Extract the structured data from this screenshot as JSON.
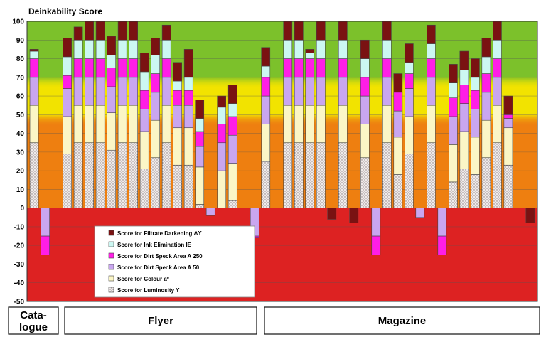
{
  "chart_data": {
    "type": "bar",
    "stacked": true,
    "ylabel": "Deinkability Score",
    "ylim": [
      -50,
      100
    ],
    "yticks": [
      -50,
      -40,
      -30,
      -20,
      -10,
      0,
      10,
      20,
      30,
      40,
      50,
      60,
      70,
      80,
      90,
      100
    ],
    "grid": true,
    "legend_position": "bottom-left",
    "background_bands": [
      {
        "from": -50,
        "to": 0,
        "color": "#dd2222"
      },
      {
        "from": 0,
        "to": 50,
        "color": "#ee7f10"
      },
      {
        "from": 50,
        "to": 70,
        "color": "#f2e300"
      },
      {
        "from": 70,
        "to": 100,
        "color": "#7cc12b"
      }
    ],
    "groups": [
      {
        "label_lines": [
          "Cata-",
          "logue"
        ],
        "start": 0,
        "end": 0
      },
      {
        "label_lines": [
          "Flyer"
        ],
        "start": 1,
        "end": 20
      },
      {
        "label_lines": [
          "Magazine"
        ],
        "start": 21,
        "end": 45
      }
    ],
    "series": [
      {
        "name": "Score for Luminosity Y",
        "color": "#e8e0e0",
        "values": [
          35,
          0,
          0,
          29,
          35,
          35,
          35,
          31,
          35,
          35,
          21,
          27,
          35,
          23,
          23,
          2,
          0,
          0,
          4,
          0,
          0,
          25,
          0,
          35,
          35,
          35,
          35,
          0,
          35,
          0,
          27,
          0,
          35,
          18,
          29,
          0,
          35,
          0,
          14,
          21,
          18,
          27,
          35,
          23,
          0,
          0
        ]
      },
      {
        "name": "Score for Colour a*",
        "color": "#fbf6c6",
        "values": [
          20,
          0,
          0,
          20,
          20,
          20,
          20,
          20,
          20,
          20,
          20,
          20,
          20,
          20,
          20,
          20,
          0,
          20,
          20,
          0,
          0,
          20,
          0,
          20,
          20,
          20,
          20,
          0,
          20,
          0,
          18,
          0,
          20,
          20,
          20,
          0,
          20,
          0,
          20,
          20,
          20,
          20,
          20,
          20,
          0,
          0
        ]
      },
      {
        "name": "Score for Dirt Speck Area A 50",
        "color": "#c9a6ef",
        "values": [
          15,
          -15,
          0,
          15,
          15,
          15,
          15,
          14,
          15,
          15,
          12,
          15,
          15,
          12,
          12,
          11,
          -4,
          15,
          15,
          0,
          -15,
          15,
          0,
          15,
          15,
          15,
          15,
          0,
          15,
          0,
          15,
          -15,
          15,
          14,
          15,
          -5,
          15,
          -15,
          15,
          15,
          15,
          15,
          15,
          5,
          0,
          0
        ]
      },
      {
        "name": "Score for Dirt Speck Area A 250",
        "color": "#ff1ee6",
        "values": [
          10,
          -10,
          0,
          7,
          10,
          10,
          10,
          10,
          10,
          10,
          10,
          10,
          10,
          8,
          8,
          8,
          0,
          10,
          10,
          0,
          -1,
          10,
          0,
          10,
          10,
          10,
          10,
          0,
          10,
          0,
          10,
          -10,
          10,
          10,
          8,
          0,
          10,
          -10,
          10,
          10,
          10,
          10,
          10,
          2,
          0,
          0
        ]
      },
      {
        "name": "Score for Ink Elimination IE",
        "color": "#ccf7f2",
        "values": [
          4,
          0,
          0,
          10,
          10,
          10,
          10,
          7,
          10,
          10,
          10,
          10,
          10,
          5,
          7,
          7,
          0,
          9,
          7,
          0,
          0,
          6,
          0,
          10,
          10,
          3,
          10,
          0,
          10,
          0,
          10,
          0,
          10,
          0,
          6,
          0,
          8,
          0,
          8,
          8,
          7,
          9,
          10,
          0,
          0,
          0
        ]
      },
      {
        "name": "Score for Filtrate Darkening ΔY",
        "color": "#7a1212",
        "values": [
          1,
          0,
          0,
          10,
          7,
          10,
          10,
          10,
          10,
          10,
          10,
          9,
          8,
          10,
          15,
          10,
          0,
          6,
          10,
          0,
          0,
          10,
          0,
          10,
          10,
          2,
          10,
          -6,
          10,
          -8,
          10,
          0,
          10,
          10,
          10,
          0,
          10,
          0,
          10,
          10,
          10,
          10,
          10,
          10,
          0,
          -8
        ]
      }
    ]
  }
}
